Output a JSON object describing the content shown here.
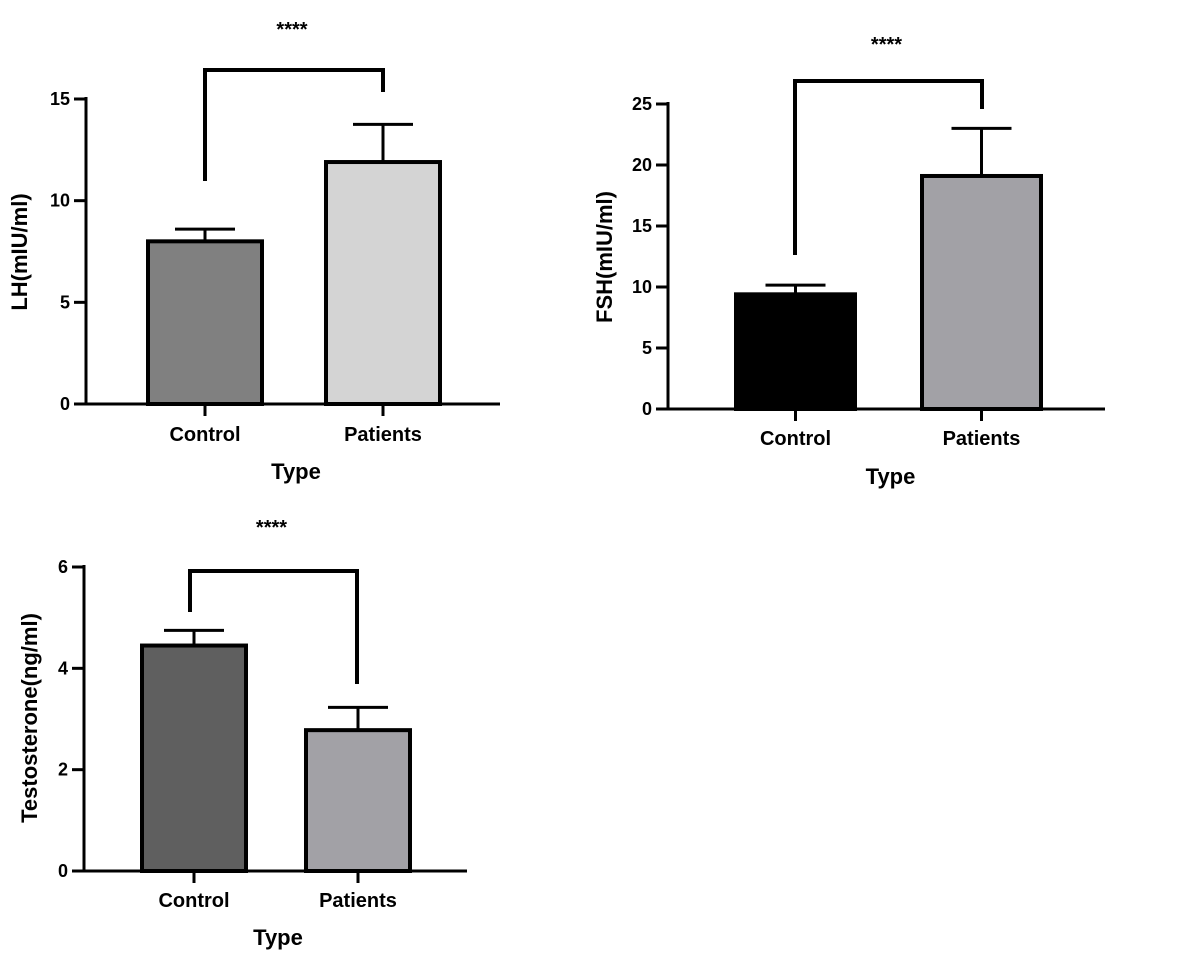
{
  "figure_title": "",
  "chart_data": [
    {
      "type": "bar",
      "title": "",
      "categories": [
        "Control",
        "Patients"
      ],
      "values": [
        8.0,
        11.9
      ],
      "errors": [
        0.6,
        1.85
      ],
      "bar_colors": [
        "#808080",
        "#d4d4d4"
      ],
      "xlabel": "Type",
      "ylabel": "LH(mIU/ml)",
      "ylim": [
        0,
        15
      ],
      "yticks": [
        0,
        5,
        10,
        15
      ],
      "yticklabels": [
        "0",
        "5",
        "10",
        "15"
      ],
      "significance": "****",
      "grid": false
    },
    {
      "type": "bar",
      "title": "",
      "categories": [
        "Control",
        "Patients"
      ],
      "values": [
        9.4,
        19.1
      ],
      "errors": [
        0.75,
        3.9
      ],
      "bar_colors": [
        "#000000",
        "#a2a1a6"
      ],
      "xlabel": "Type",
      "ylabel": "FSH(mIU/ml)",
      "ylim": [
        0,
        25
      ],
      "yticks": [
        0,
        5,
        10,
        15,
        20,
        25
      ],
      "yticklabels": [
        "0",
        "5",
        "10",
        "15",
        "20",
        "25"
      ],
      "significance": "****",
      "grid": false
    },
    {
      "type": "bar",
      "title": "",
      "categories": [
        "Control",
        "Patients"
      ],
      "values": [
        4.45,
        2.78
      ],
      "errors": [
        0.3,
        0.45
      ],
      "bar_colors": [
        "#5f5f5f",
        "#a2a1a6"
      ],
      "xlabel": "Type",
      "ylabel": "Testosterone(ng/ml)",
      "ylim": [
        0,
        6
      ],
      "yticks": [
        0,
        2,
        4,
        6
      ],
      "yticklabels": [
        "0",
        "2",
        "4",
        "6"
      ],
      "significance": "****",
      "grid": false
    }
  ]
}
